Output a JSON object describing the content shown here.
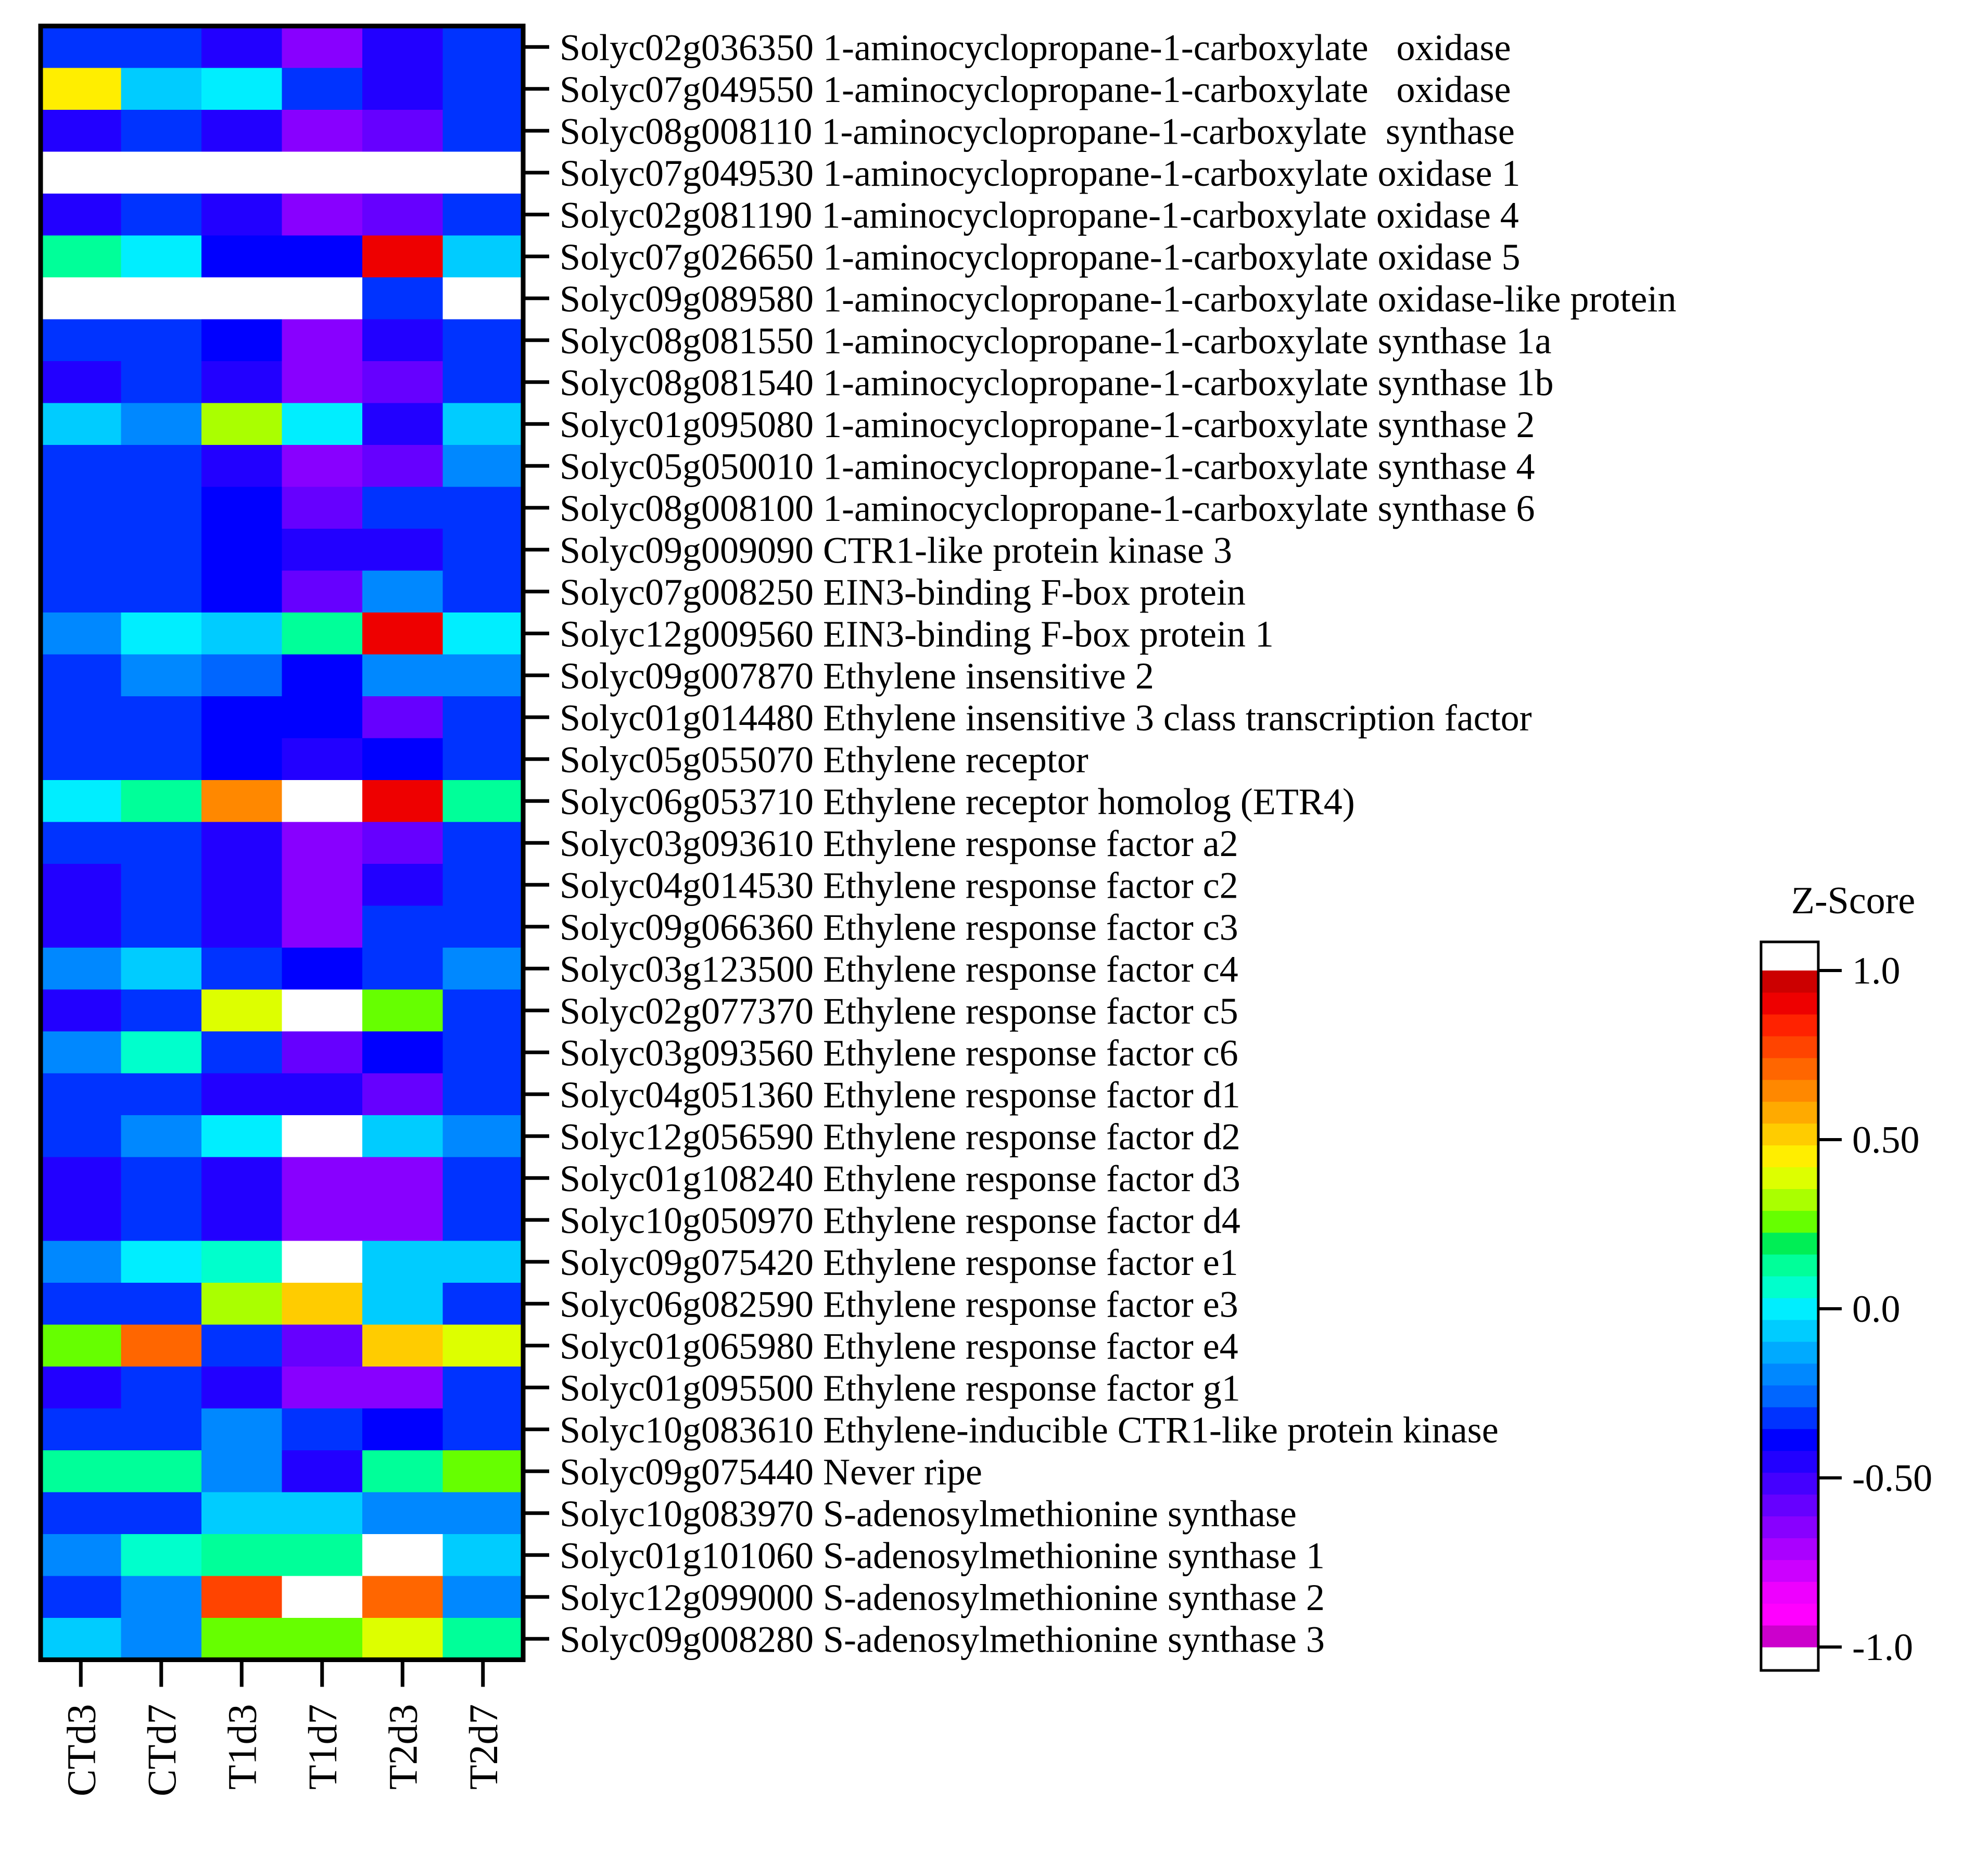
{
  "chart_data": {
    "type": "heatmap",
    "columns": [
      "CTd3",
      "CTd7",
      "T1d3",
      "T1d7",
      "T2d3",
      "T2d7"
    ],
    "rows": [
      "Solyc02g036350 1-aminocyclopropane-1-carboxylate   oxidase",
      "Solyc07g049550 1-aminocyclopropane-1-carboxylate   oxidase",
      "Solyc08g008110 1-aminocyclopropane-1-carboxylate  synthase",
      "Solyc07g049530 1-aminocyclopropane-1-carboxylate oxidase 1",
      "Solyc02g081190 1-aminocyclopropane-1-carboxylate oxidase 4",
      "Solyc07g026650 1-aminocyclopropane-1-carboxylate oxidase 5",
      "Solyc09g089580 1-aminocyclopropane-1-carboxylate oxidase-like protein",
      "Solyc08g081550 1-aminocyclopropane-1-carboxylate synthase 1a",
      "Solyc08g081540 1-aminocyclopropane-1-carboxylate synthase 1b",
      "Solyc01g095080 1-aminocyclopropane-1-carboxylate synthase 2",
      "Solyc05g050010 1-aminocyclopropane-1-carboxylate synthase 4",
      "Solyc08g008100 1-aminocyclopropane-1-carboxylate synthase 6",
      "Solyc09g009090 CTR1-like protein kinase 3",
      "Solyc07g008250 EIN3-binding F-box protein",
      "Solyc12g009560 EIN3-binding F-box protein 1",
      "Solyc09g007870 Ethylene insensitive 2",
      "Solyc01g014480 Ethylene insensitive 3 class transcription factor",
      "Solyc05g055070 Ethylene receptor",
      "Solyc06g053710 Ethylene receptor homolog (ETR4)",
      "Solyc03g093610 Ethylene response factor a2",
      "Solyc04g014530 Ethylene response factor c2",
      "Solyc09g066360 Ethylene response factor c3",
      "Solyc03g123500 Ethylene response factor c4",
      "Solyc02g077370 Ethylene response factor c5",
      "Solyc03g093560 Ethylene response factor c6",
      "Solyc04g051360 Ethylene response factor d1",
      "Solyc12g056590 Ethylene response factor d2",
      "Solyc01g108240 Ethylene response factor d3",
      "Solyc10g050970 Ethylene response factor d4",
      "Solyc09g075420 Ethylene response factor e1",
      "Solyc06g082590 Ethylene response factor e3",
      "Solyc01g065980 Ethylene response factor e4",
      "Solyc01g095500 Ethylene response factor g1",
      "Solyc10g083610 Ethylene-inducible CTR1-like protein kinase",
      "Solyc09g075440 Never ripe",
      "Solyc10g083970 S-adenosylmethionine synthase",
      "Solyc01g101060 S-adenosylmethionine synthase 1",
      "Solyc12g099000 S-adenosylmethionine synthase 2",
      "Solyc09g008280 S-adenosylmethionine synthase 3"
    ],
    "values": [
      [
        -0.35,
        -0.35,
        -0.45,
        -0.7,
        -0.5,
        -0.35
      ],
      [
        0.45,
        -0.05,
        0.0,
        -0.35,
        -0.5,
        -0.35
      ],
      [
        -0.45,
        -0.35,
        -0.5,
        -0.7,
        -0.6,
        -0.35
      ],
      [
        1.05,
        1.05,
        1.05,
        1.05,
        1.05,
        1.05
      ],
      [
        -0.45,
        -0.35,
        -0.5,
        -0.7,
        -0.6,
        -0.35
      ],
      [
        0.15,
        0.0,
        -0.4,
        -0.4,
        0.9,
        -0.05
      ],
      [
        1.05,
        1.05,
        1.05,
        1.05,
        -0.35,
        1.05
      ],
      [
        -0.35,
        -0.35,
        -0.4,
        -0.7,
        -0.5,
        -0.35
      ],
      [
        -0.45,
        -0.35,
        -0.5,
        -0.7,
        -0.6,
        -0.35
      ],
      [
        -0.05,
        -0.2,
        0.35,
        0.0,
        -0.5,
        -0.05
      ],
      [
        -0.35,
        -0.35,
        -0.5,
        -0.7,
        -0.6,
        -0.2
      ],
      [
        -0.35,
        -0.35,
        -0.4,
        -0.6,
        -0.35,
        -0.35
      ],
      [
        -0.35,
        -0.35,
        -0.4,
        -0.5,
        -0.5,
        -0.35
      ],
      [
        -0.35,
        -0.35,
        -0.4,
        -0.6,
        -0.2,
        -0.35
      ],
      [
        -0.2,
        0.0,
        -0.1,
        0.15,
        0.9,
        0.0
      ],
      [
        -0.35,
        -0.2,
        -0.3,
        -0.4,
        -0.2,
        -0.2
      ],
      [
        -0.35,
        -0.35,
        -0.4,
        -0.4,
        -0.6,
        -0.35
      ],
      [
        -0.35,
        -0.35,
        -0.4,
        -0.5,
        -0.4,
        -0.35
      ],
      [
        0.0,
        0.1,
        0.65,
        1.05,
        0.95,
        0.1
      ],
      [
        -0.35,
        -0.35,
        -0.5,
        -0.7,
        -0.6,
        -0.35
      ],
      [
        -0.45,
        -0.35,
        -0.5,
        -0.7,
        -0.5,
        -0.35
      ],
      [
        -0.45,
        -0.35,
        -0.45,
        -0.7,
        -0.35,
        -0.35
      ],
      [
        -0.2,
        -0.1,
        -0.35,
        -0.4,
        -0.35,
        -0.2
      ],
      [
        -0.45,
        -0.35,
        0.4,
        1.05,
        0.25,
        -0.35
      ],
      [
        -0.2,
        0.05,
        -0.35,
        -0.6,
        -0.4,
        -0.35
      ],
      [
        -0.35,
        -0.35,
        -0.5,
        -0.5,
        -0.6,
        -0.35
      ],
      [
        -0.35,
        -0.2,
        0.0,
        1.05,
        -0.05,
        -0.2
      ],
      [
        -0.45,
        -0.35,
        -0.5,
        -0.7,
        -0.65,
        -0.35
      ],
      [
        -0.45,
        -0.35,
        -0.5,
        -0.65,
        -0.65,
        -0.35
      ],
      [
        -0.2,
        0.0,
        0.05,
        1.05,
        -0.05,
        -0.05
      ],
      [
        -0.35,
        -0.35,
        0.35,
        0.55,
        -0.05,
        -0.35
      ],
      [
        0.25,
        0.7,
        -0.35,
        -0.6,
        0.55,
        0.4
      ],
      [
        -0.45,
        -0.35,
        -0.5,
        -0.7,
        -0.65,
        -0.35
      ],
      [
        -0.35,
        -0.35,
        -0.2,
        -0.35,
        -0.4,
        -0.35
      ],
      [
        0.15,
        0.15,
        -0.2,
        -0.5,
        0.15,
        0.25
      ],
      [
        -0.35,
        -0.35,
        -0.05,
        -0.05,
        -0.2,
        -0.2
      ],
      [
        -0.2,
        0.05,
        0.15,
        0.15,
        1.05,
        -0.05
      ],
      [
        -0.35,
        -0.2,
        0.8,
        1.05,
        0.75,
        -0.2
      ],
      [
        -0.05,
        -0.2,
        0.25,
        0.25,
        0.4,
        0.15
      ]
    ],
    "scale": {
      "title": "Z-Score",
      "min": -1.0,
      "max": 1.0,
      "ticks": [
        {
          "value": 1.0,
          "label": "1.0"
        },
        {
          "value": 0.5,
          "label": "0.50"
        },
        {
          "value": 0.0,
          "label": "0.0"
        },
        {
          "value": -0.5,
          "label": "-0.50"
        },
        {
          "value": -1.0,
          "label": "-1.0"
        }
      ],
      "out_of_range_color": "#ffffff",
      "colors": [
        "#cc00cc",
        "#ff00ff",
        "#ee00ff",
        "#cc00ff",
        "#aa00ff",
        "#8800ff",
        "#6600ff",
        "#4400ff",
        "#2200ff",
        "#0000ff",
        "#0033ff",
        "#0066ff",
        "#0088ff",
        "#00aaff",
        "#00ccff",
        "#00eeff",
        "#00ffcc",
        "#00ff99",
        "#00ee55",
        "#66ff00",
        "#aaff00",
        "#ddff00",
        "#ffee00",
        "#ffcc00",
        "#ffaa00",
        "#ff8800",
        "#ff6600",
        "#ff4400",
        "#ff2200",
        "#ee0000",
        "#cc0000"
      ]
    },
    "legend_position": "right"
  }
}
